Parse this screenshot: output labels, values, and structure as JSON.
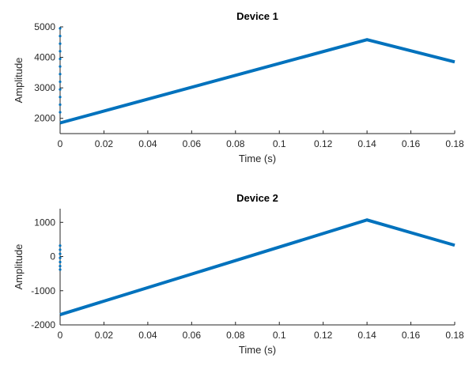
{
  "colors": {
    "series": "#0072BD",
    "axis": "#262626"
  },
  "chart_data": [
    {
      "type": "line",
      "title": "Device 1",
      "xlabel": "Time (s)",
      "ylabel": "Amplitude",
      "xlim": [
        0,
        0.18
      ],
      "ylim": [
        1500,
        5000
      ],
      "xticks": [
        0,
        0.02,
        0.04,
        0.06,
        0.08,
        0.1,
        0.12,
        0.14,
        0.16,
        0.18
      ],
      "xtick_labels": [
        "0",
        "0.02",
        "0.04",
        "0.06",
        "0.08",
        "0.1",
        "0.12",
        "0.14",
        "0.16",
        "0.18"
      ],
      "yticks": [
        2000,
        3000,
        4000,
        5000
      ],
      "ytick_labels": [
        "2000",
        "3000",
        "4000",
        "5000"
      ],
      "grid": false,
      "series": [
        {
          "x": [
            0,
            0.14,
            0.18
          ],
          "y": [
            1850,
            4580,
            3850
          ]
        }
      ],
      "markers": [
        {
          "x": 0,
          "y": 4950
        },
        {
          "x": 0,
          "y": 4700
        },
        {
          "x": 0,
          "y": 4450
        },
        {
          "x": 0,
          "y": 4200
        },
        {
          "x": 0,
          "y": 3950
        },
        {
          "x": 0,
          "y": 3700
        },
        {
          "x": 0,
          "y": 3450
        },
        {
          "x": 0,
          "y": 3200
        },
        {
          "x": 0,
          "y": 2950
        },
        {
          "x": 0,
          "y": 2700
        },
        {
          "x": 0,
          "y": 2450
        },
        {
          "x": 0,
          "y": 2200
        }
      ]
    },
    {
      "type": "line",
      "title": "Device 2",
      "xlabel": "Time (s)",
      "ylabel": "Amplitude",
      "xlim": [
        0,
        0.18
      ],
      "ylim": [
        -2000,
        1400
      ],
      "xticks": [
        0,
        0.02,
        0.04,
        0.06,
        0.08,
        0.1,
        0.12,
        0.14,
        0.16,
        0.18
      ],
      "xtick_labels": [
        "0",
        "0.02",
        "0.04",
        "0.06",
        "0.08",
        "0.1",
        "0.12",
        "0.14",
        "0.16",
        "0.18"
      ],
      "yticks": [
        -2000,
        -1000,
        0,
        1000
      ],
      "ytick_labels": [
        "-2000",
        "-1000",
        "0",
        "1000"
      ],
      "grid": false,
      "series": [
        {
          "x": [
            0,
            0.14,
            0.18
          ],
          "y": [
            -1700,
            1070,
            330
          ]
        }
      ],
      "markers": [
        {
          "x": 0,
          "y": 320
        },
        {
          "x": 0,
          "y": 200
        },
        {
          "x": 0,
          "y": 80
        },
        {
          "x": 0,
          "y": -40
        },
        {
          "x": 0,
          "y": -160
        },
        {
          "x": 0,
          "y": -280
        },
        {
          "x": 0,
          "y": -380
        }
      ]
    }
  ]
}
